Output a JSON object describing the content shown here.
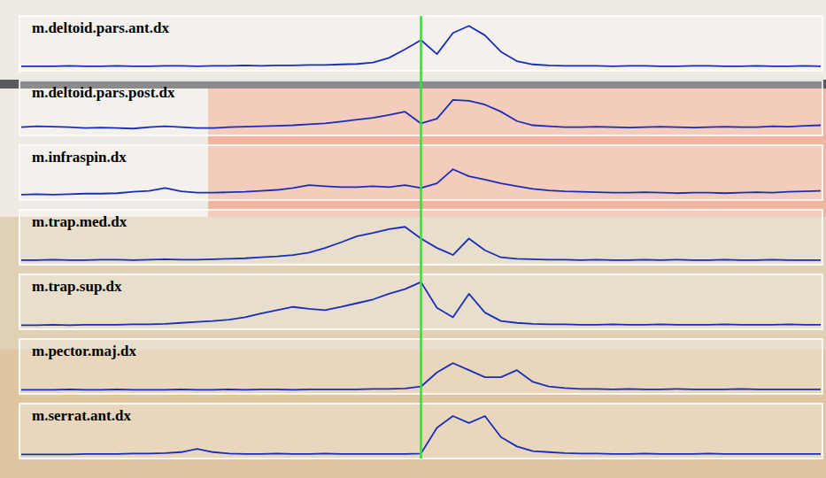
{
  "chart_data": {
    "type": "line",
    "tick_labels": false,
    "x": [
      0,
      2,
      4,
      6,
      8,
      10,
      12,
      14,
      16,
      18,
      20,
      22,
      24,
      26,
      28,
      30,
      32,
      34,
      36,
      38,
      40,
      42,
      44,
      46,
      48,
      50,
      52,
      54,
      56,
      58,
      60,
      62,
      64,
      66,
      68,
      70,
      72,
      74,
      76,
      78,
      80,
      82,
      84,
      86,
      88,
      90,
      92,
      94,
      96,
      98,
      100
    ],
    "xlim": [
      0,
      100
    ],
    "ylim": [
      0,
      1
    ],
    "event": {
      "x": 50,
      "color": "#33e033"
    },
    "series": [
      {
        "name": "m.deltoid.pars.ant.dx",
        "color": "#1a2db8",
        "values": [
          0.04,
          0.04,
          0.04,
          0.05,
          0.04,
          0.04,
          0.05,
          0.04,
          0.04,
          0.05,
          0.05,
          0.04,
          0.05,
          0.05,
          0.06,
          0.05,
          0.06,
          0.06,
          0.07,
          0.07,
          0.08,
          0.09,
          0.12,
          0.22,
          0.4,
          0.6,
          0.3,
          0.75,
          0.9,
          0.7,
          0.35,
          0.15,
          0.08,
          0.06,
          0.05,
          0.05,
          0.05,
          0.04,
          0.05,
          0.05,
          0.04,
          0.04,
          0.05,
          0.05,
          0.04,
          0.04,
          0.05,
          0.04,
          0.04,
          0.05,
          0.04
        ]
      },
      {
        "name": "m.deltoid.pars.post.dx",
        "color": "#1a2db8",
        "values": [
          0.12,
          0.14,
          0.13,
          0.12,
          0.1,
          0.11,
          0.1,
          0.09,
          0.12,
          0.14,
          0.12,
          0.1,
          0.1,
          0.12,
          0.13,
          0.14,
          0.15,
          0.16,
          0.18,
          0.2,
          0.24,
          0.28,
          0.32,
          0.38,
          0.45,
          0.2,
          0.3,
          0.7,
          0.68,
          0.6,
          0.45,
          0.25,
          0.16,
          0.14,
          0.12,
          0.12,
          0.13,
          0.12,
          0.11,
          0.12,
          0.13,
          0.12,
          0.11,
          0.12,
          0.13,
          0.12,
          0.12,
          0.14,
          0.13,
          0.15,
          0.16
        ]
      },
      {
        "name": "m.infraspin.dx",
        "color": "#1a2db8",
        "values": [
          0.06,
          0.07,
          0.06,
          0.07,
          0.08,
          0.08,
          0.09,
          0.12,
          0.14,
          0.2,
          0.13,
          0.1,
          0.1,
          0.11,
          0.12,
          0.14,
          0.16,
          0.2,
          0.26,
          0.24,
          0.22,
          0.22,
          0.24,
          0.22,
          0.26,
          0.2,
          0.3,
          0.6,
          0.45,
          0.38,
          0.3,
          0.24,
          0.18,
          0.15,
          0.13,
          0.12,
          0.11,
          0.1,
          0.1,
          0.11,
          0.1,
          0.09,
          0.1,
          0.1,
          0.09,
          0.1,
          0.11,
          0.1,
          0.12,
          0.13,
          0.14
        ]
      },
      {
        "name": "m.trap.med.dx",
        "color": "#1a2db8",
        "values": [
          0.04,
          0.04,
          0.05,
          0.04,
          0.04,
          0.05,
          0.05,
          0.04,
          0.05,
          0.06,
          0.05,
          0.05,
          0.06,
          0.07,
          0.08,
          0.1,
          0.12,
          0.15,
          0.2,
          0.3,
          0.42,
          0.55,
          0.62,
          0.7,
          0.75,
          0.5,
          0.3,
          0.15,
          0.5,
          0.25,
          0.1,
          0.07,
          0.06,
          0.05,
          0.05,
          0.04,
          0.05,
          0.04,
          0.04,
          0.05,
          0.04,
          0.05,
          0.04,
          0.04,
          0.05,
          0.04,
          0.04,
          0.05,
          0.04,
          0.04,
          0.04
        ]
      },
      {
        "name": "m.trap.sup.dx",
        "color": "#1a2db8",
        "values": [
          0.03,
          0.03,
          0.04,
          0.03,
          0.04,
          0.04,
          0.04,
          0.05,
          0.05,
          0.06,
          0.08,
          0.1,
          0.12,
          0.15,
          0.2,
          0.28,
          0.35,
          0.42,
          0.38,
          0.35,
          0.42,
          0.5,
          0.58,
          0.7,
          0.8,
          0.95,
          0.4,
          0.2,
          0.7,
          0.3,
          0.12,
          0.08,
          0.06,
          0.05,
          0.05,
          0.04,
          0.04,
          0.05,
          0.04,
          0.04,
          0.05,
          0.04,
          0.04,
          0.04,
          0.05,
          0.04,
          0.04,
          0.04,
          0.05,
          0.04,
          0.04
        ]
      },
      {
        "name": "m.pector.maj.dx",
        "color": "#1a2db8",
        "values": [
          0.03,
          0.03,
          0.03,
          0.04,
          0.03,
          0.03,
          0.04,
          0.03,
          0.03,
          0.03,
          0.04,
          0.03,
          0.03,
          0.04,
          0.03,
          0.04,
          0.04,
          0.03,
          0.04,
          0.04,
          0.04,
          0.04,
          0.05,
          0.05,
          0.06,
          0.1,
          0.4,
          0.6,
          0.45,
          0.3,
          0.3,
          0.45,
          0.2,
          0.1,
          0.07,
          0.05,
          0.05,
          0.04,
          0.05,
          0.04,
          0.04,
          0.05,
          0.04,
          0.04,
          0.04,
          0.05,
          0.04,
          0.04,
          0.04,
          0.04,
          0.04
        ]
      },
      {
        "name": "m.serrat.ant.dx",
        "color": "#1a2db8",
        "values": [
          0.03,
          0.03,
          0.03,
          0.03,
          0.04,
          0.04,
          0.04,
          0.05,
          0.05,
          0.06,
          0.08,
          0.15,
          0.08,
          0.05,
          0.04,
          0.04,
          0.05,
          0.04,
          0.04,
          0.05,
          0.04,
          0.04,
          0.04,
          0.04,
          0.04,
          0.05,
          0.6,
          0.85,
          0.7,
          0.85,
          0.4,
          0.2,
          0.1,
          0.08,
          0.06,
          0.05,
          0.05,
          0.04,
          0.04,
          0.05,
          0.04,
          0.04,
          0.04,
          0.05,
          0.04,
          0.04,
          0.04,
          0.04,
          0.04,
          0.04,
          0.04
        ]
      }
    ]
  }
}
